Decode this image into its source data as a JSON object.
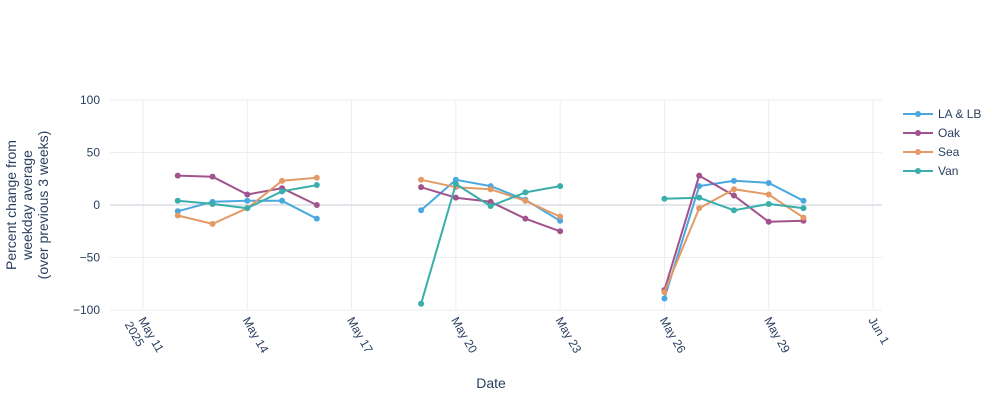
{
  "chart_data": {
    "type": "line",
    "xlabel": "Date",
    "ylabel": [
      "Percent change from",
      "weekday average",
      "(over previous 3 weeks)"
    ],
    "xlim": [
      "2025-05-10",
      "2025-06-01"
    ],
    "ylim": [
      -100,
      100
    ],
    "x_ticks": [
      {
        "date": "2025-05-11",
        "label": "May 11",
        "label2": "2025"
      },
      {
        "date": "2025-05-14",
        "label": "May 14"
      },
      {
        "date": "2025-05-17",
        "label": "May 17"
      },
      {
        "date": "2025-05-20",
        "label": "May 20"
      },
      {
        "date": "2025-05-23",
        "label": "May 23"
      },
      {
        "date": "2025-05-26",
        "label": "May 26"
      },
      {
        "date": "2025-05-29",
        "label": "May 29"
      },
      {
        "date": "2025-06-01",
        "label": "Jun 1"
      }
    ],
    "y_ticks": [
      {
        "value": 100,
        "label": "100"
      },
      {
        "value": 50,
        "label": "50"
      },
      {
        "value": 0,
        "label": "0"
      },
      {
        "value": -50,
        "label": "−50"
      },
      {
        "value": -100,
        "label": "−100"
      }
    ],
    "grid": true,
    "legend_position": "right",
    "series": [
      {
        "name": "LA & LB",
        "color": "#4aa8df",
        "points": [
          {
            "date": "2025-05-12",
            "y": -6
          },
          {
            "date": "2025-05-13",
            "y": 3
          },
          {
            "date": "2025-05-14",
            "y": 4
          },
          {
            "date": "2025-05-15",
            "y": 4
          },
          {
            "date": "2025-05-16",
            "y": -13
          },
          {
            "date": "2025-05-19",
            "y": -5
          },
          {
            "date": "2025-05-20",
            "y": 24
          },
          {
            "date": "2025-05-21",
            "y": 18
          },
          {
            "date": "2025-05-22",
            "y": 5
          },
          {
            "date": "2025-05-23",
            "y": -15
          },
          {
            "date": "2025-05-26",
            "y": -89
          },
          {
            "date": "2025-05-27",
            "y": 18
          },
          {
            "date": "2025-05-28",
            "y": 23
          },
          {
            "date": "2025-05-29",
            "y": 21
          },
          {
            "date": "2025-05-30",
            "y": 4
          }
        ]
      },
      {
        "name": "Oak",
        "color": "#a0538c",
        "points": [
          {
            "date": "2025-05-12",
            "y": 28
          },
          {
            "date": "2025-05-13",
            "y": 27
          },
          {
            "date": "2025-05-14",
            "y": 10
          },
          {
            "date": "2025-05-15",
            "y": 16
          },
          {
            "date": "2025-05-16",
            "y": 0
          },
          {
            "date": "2025-05-19",
            "y": 17
          },
          {
            "date": "2025-05-20",
            "y": 7
          },
          {
            "date": "2025-05-21",
            "y": 3
          },
          {
            "date": "2025-05-22",
            "y": -13
          },
          {
            "date": "2025-05-23",
            "y": -25
          },
          {
            "date": "2025-05-26",
            "y": -81
          },
          {
            "date": "2025-05-27",
            "y": 28
          },
          {
            "date": "2025-05-28",
            "y": 9
          },
          {
            "date": "2025-05-29",
            "y": -16
          },
          {
            "date": "2025-05-30",
            "y": -15
          }
        ]
      },
      {
        "name": "Sea",
        "color": "#e39a66",
        "points": [
          {
            "date": "2025-05-12",
            "y": -10
          },
          {
            "date": "2025-05-13",
            "y": -18
          },
          {
            "date": "2025-05-14",
            "y": -3
          },
          {
            "date": "2025-05-15",
            "y": 23
          },
          {
            "date": "2025-05-16",
            "y": 26
          },
          {
            "date": "2025-05-19",
            "y": 24
          },
          {
            "date": "2025-05-20",
            "y": 17
          },
          {
            "date": "2025-05-21",
            "y": 15
          },
          {
            "date": "2025-05-22",
            "y": 4
          },
          {
            "date": "2025-05-23",
            "y": -11
          },
          {
            "date": "2025-05-26",
            "y": -83
          },
          {
            "date": "2025-05-27",
            "y": -3
          },
          {
            "date": "2025-05-28",
            "y": 15
          },
          {
            "date": "2025-05-29",
            "y": 10
          },
          {
            "date": "2025-05-30",
            "y": -12
          }
        ]
      },
      {
        "name": "Van",
        "color": "#3aaeaa",
        "points": [
          {
            "date": "2025-05-12",
            "y": 4
          },
          {
            "date": "2025-05-13",
            "y": 1
          },
          {
            "date": "2025-05-14",
            "y": -3
          },
          {
            "date": "2025-05-15",
            "y": 13
          },
          {
            "date": "2025-05-16",
            "y": 19
          },
          {
            "date": "2025-05-19",
            "y": -94
          },
          {
            "date": "2025-05-20",
            "y": 20
          },
          {
            "date": "2025-05-21",
            "y": -1
          },
          {
            "date": "2025-05-22",
            "y": 12
          },
          {
            "date": "2025-05-23",
            "y": 18
          },
          {
            "date": "2025-05-26",
            "y": 6
          },
          {
            "date": "2025-05-27",
            "y": 7
          },
          {
            "date": "2025-05-28",
            "y": -5
          },
          {
            "date": "2025-05-29",
            "y": 1
          },
          {
            "date": "2025-05-30",
            "y": -3
          }
        ]
      }
    ]
  }
}
